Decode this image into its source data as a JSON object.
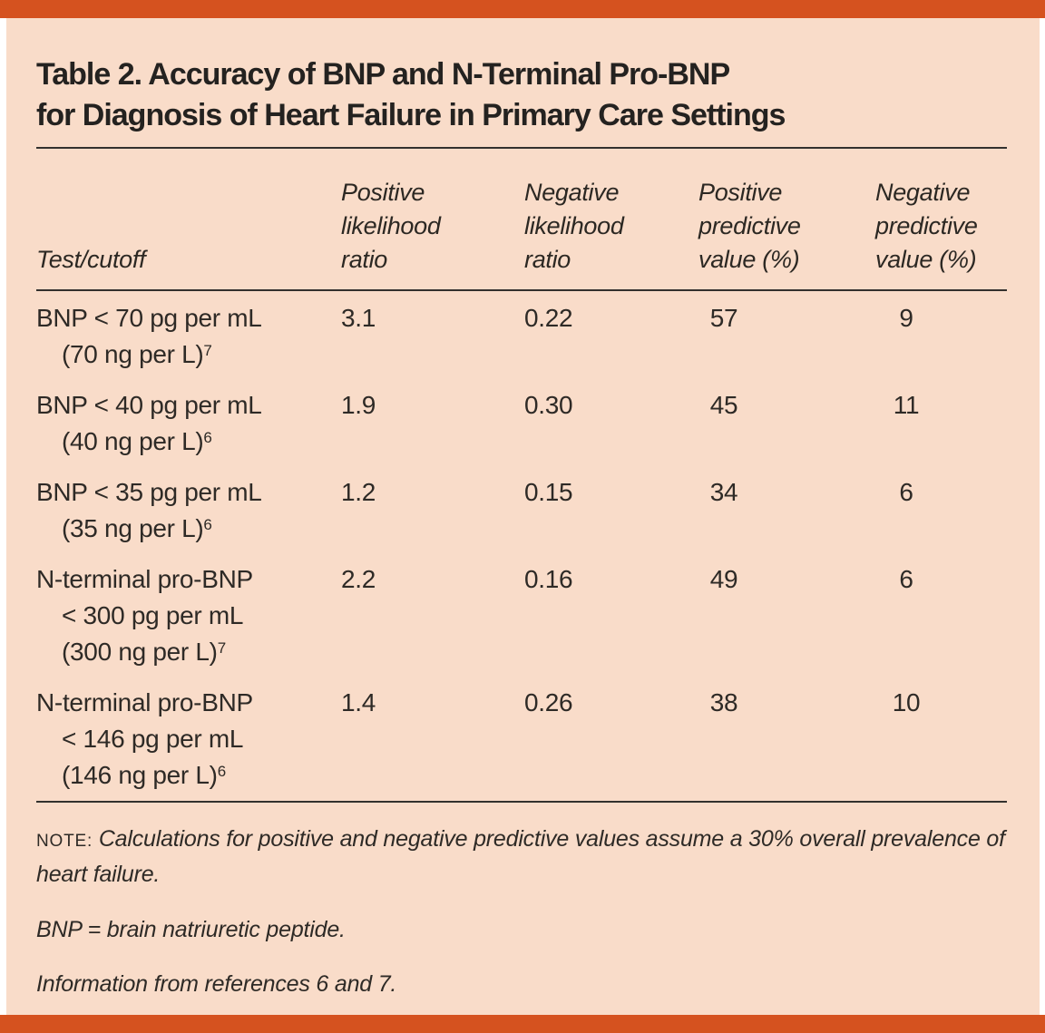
{
  "title": {
    "line1": "Table 2. Accuracy of BNP and N-Terminal Pro-BNP",
    "line2": "for Diagnosis of Heart Failure in Primary Care Settings"
  },
  "table": {
    "headers": [
      {
        "lines": [
          "Test/cutoff"
        ]
      },
      {
        "lines": [
          "Positive",
          "likelihood",
          "ratio"
        ]
      },
      {
        "lines": [
          "Negative",
          "likelihood",
          "ratio"
        ]
      },
      {
        "lines": [
          "Positive",
          "predictive",
          "value (%)"
        ]
      },
      {
        "lines": [
          "Negative",
          "predictive",
          "value (%)"
        ]
      }
    ],
    "rows": [
      {
        "label_lines": [
          "BNP < 70 pg per mL",
          "(70 ng per L)"
        ],
        "reference_superscript": "7",
        "positive_lr": "3.1",
        "negative_lr": "0.22",
        "ppv": "57",
        "npv": "9"
      },
      {
        "label_lines": [
          "BNP < 40 pg per mL",
          "(40 ng per L)"
        ],
        "reference_superscript": "6",
        "positive_lr": "1.9",
        "negative_lr": "0.30",
        "ppv": "45",
        "npv": "11"
      },
      {
        "label_lines": [
          "BNP < 35 pg per mL",
          "(35 ng per L)"
        ],
        "reference_superscript": "6",
        "positive_lr": "1.2",
        "negative_lr": "0.15",
        "ppv": "34",
        "npv": "6"
      },
      {
        "label_lines": [
          "N-terminal pro-BNP",
          "< 300 pg per mL",
          "(300 ng per L)"
        ],
        "reference_superscript": "7",
        "positive_lr": "2.2",
        "negative_lr": "0.16",
        "ppv": "49",
        "npv": "6"
      },
      {
        "label_lines": [
          "N-terminal pro-BNP",
          "< 146 pg per mL",
          "(146 ng per L)"
        ],
        "reference_superscript": "6",
        "positive_lr": "1.4",
        "negative_lr": "0.26",
        "ppv": "38",
        "npv": "10"
      }
    ]
  },
  "notes": {
    "note_label": "NOTE:",
    "note_text": "Calculations for positive and negative predictive values assume a 30% overall prevalence of heart failure.",
    "abbreviation": "BNP = brain natriuretic peptide.",
    "source": "Information from references 6 and 7."
  },
  "colors": {
    "accent_orange": "#d5521f",
    "panel_peach": "#f9dcc9",
    "text": "#2e2a26",
    "rule": "#33312e"
  }
}
